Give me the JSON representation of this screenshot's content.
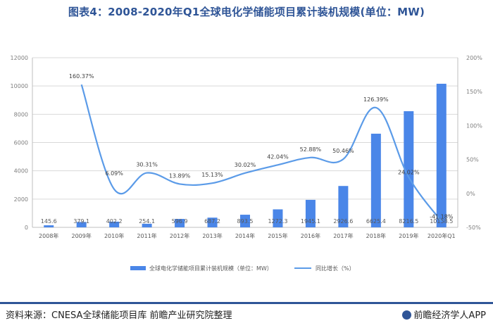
{
  "title": "图表4：2008-2020年Q1全球电化学储能项目累计装机规模(单位：MW)",
  "source": "资料来源：CNESA全球储能项目库 前瞻产业研究院整理",
  "brand": "前瞻经济学人APP",
  "colors": {
    "bar": "#4a86e8",
    "line": "#5b9be8",
    "title": "#2f5597",
    "grid": "#d9d9d9"
  },
  "chart_data": {
    "type": "bar",
    "categories": [
      "2008年",
      "2009年",
      "2010年",
      "2011年",
      "2012年",
      "2013年",
      "2014年",
      "2015年",
      "2016年",
      "2017年",
      "2018年",
      "2019年",
      "2020年Q1"
    ],
    "series": [
      {
        "name": "全球电化学储能项目累计装机规模（单位：MW）",
        "type": "bar",
        "axis": "left",
        "values": [
          145.6,
          379.1,
          402.2,
          254.1,
          596.9,
          687.2,
          893.5,
          1272.3,
          1945.1,
          2926.6,
          6625.4,
          8216.5,
          10158.5
        ],
        "labels": [
          "145.6",
          "379.1",
          "402.2",
          "254.1",
          "596.9",
          "687.2",
          "893.5",
          "1272.3",
          "1945.1",
          "2926.6",
          "6625.4",
          "8216.5",
          "10158.5"
        ]
      },
      {
        "name": "同比增长（%）",
        "type": "line",
        "axis": "right",
        "values": [
          null,
          160.37,
          6.09,
          30.31,
          13.89,
          15.13,
          30.02,
          42.04,
          52.88,
          50.46,
          126.39,
          24.02,
          -41.18
        ],
        "labels": [
          "",
          "160.37%",
          "6.09%",
          "30.31%",
          "13.89%",
          "15.13%",
          "30.02%",
          "42.04%",
          "52.88%",
          "50.46%",
          "126.39%",
          "24.02%",
          "-41.18%"
        ]
      }
    ],
    "y_left": {
      "min": 0,
      "max": 12000,
      "ticks": [
        "0",
        "2000",
        "4000",
        "6000",
        "8000",
        "10000",
        "12000"
      ]
    },
    "y_right": {
      "min": -50,
      "max": 200,
      "ticks": [
        "-50%",
        "0%",
        "50%",
        "100%",
        "150%",
        "200%"
      ]
    },
    "grid": true,
    "legend": "bottom"
  }
}
